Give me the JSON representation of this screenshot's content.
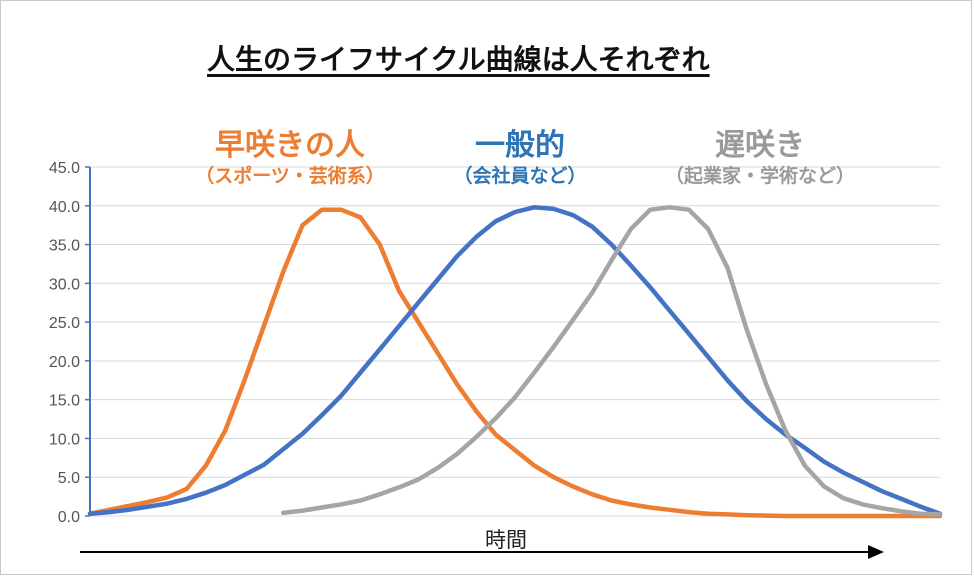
{
  "title": "人生のライフサイクル曲線は人それぞれ",
  "labels": {
    "early": {
      "main": "早咲きの人",
      "sub": "（スポーツ・芸術系）"
    },
    "general": {
      "main": "一般的",
      "sub": "（会社員など）"
    },
    "late": {
      "main": "遅咲き",
      "sub": "（起業家・学術など）"
    }
  },
  "chart_data": {
    "type": "line",
    "xlabel": "時間",
    "ylabel": "",
    "ylim": [
      0,
      45
    ],
    "yticks": [
      "0.0",
      "5.0",
      "10.0",
      "15.0",
      "20.0",
      "25.0",
      "30.0",
      "35.0",
      "40.0",
      "45.0"
    ],
    "grid": true,
    "x": [
      0,
      1,
      2,
      3,
      4,
      5,
      6,
      7,
      8,
      9,
      10,
      11,
      12,
      13,
      14,
      15,
      16,
      17,
      18,
      19,
      20,
      21,
      22,
      23,
      24,
      25,
      26,
      27,
      28,
      29,
      30,
      31,
      32,
      33,
      34,
      35,
      36,
      37,
      38,
      39,
      40,
      41,
      42,
      43,
      44
    ],
    "series": [
      {
        "color": "#ed7d31",
        "values": [
          0.3,
          0.8,
          1.3,
          1.8,
          2.4,
          3.5,
          6.5,
          11,
          17.5,
          24.5,
          31.5,
          37.5,
          39.5,
          39.5,
          38.5,
          35,
          29,
          25,
          21,
          17,
          13.5,
          10.5,
          8.5,
          6.5,
          5,
          3.8,
          2.8,
          2,
          1.5,
          1.1,
          0.8,
          0.5,
          0.3,
          0.2,
          0.1,
          0.05,
          0,
          0,
          0,
          0,
          0,
          0,
          0,
          0,
          0
        ]
      },
      {
        "color": "#4472c4",
        "values": [
          0.3,
          0.5,
          0.8,
          1.2,
          1.6,
          2.2,
          3,
          4,
          5.3,
          6.6,
          8.6,
          10.6,
          13,
          15.5,
          18.5,
          21.5,
          24.5,
          27.5,
          30.5,
          33.5,
          36,
          38,
          39.2,
          39.8,
          39.6,
          38.8,
          37.3,
          35,
          32.3,
          29.5,
          26.5,
          23.5,
          20.5,
          17.5,
          14.8,
          12.5,
          10.5,
          8.8,
          7,
          5.6,
          4.4,
          3.2,
          2.2,
          1.2,
          0.3
        ]
      },
      {
        "color": "#a5a5a5",
        "values": [
          null,
          null,
          null,
          null,
          null,
          null,
          null,
          null,
          null,
          null,
          0.4,
          0.7,
          1.1,
          1.5,
          2,
          2.8,
          3.7,
          4.7,
          6.2,
          8,
          10.2,
          12.6,
          15.3,
          18.5,
          21.8,
          25.3,
          28.8,
          33,
          37,
          39.5,
          39.8,
          39.5,
          37,
          32,
          24,
          17,
          11,
          6.5,
          3.8,
          2.3,
          1.5,
          1,
          0.6,
          0.3,
          0.2
        ]
      }
    ]
  },
  "arrow": "time-arrow"
}
